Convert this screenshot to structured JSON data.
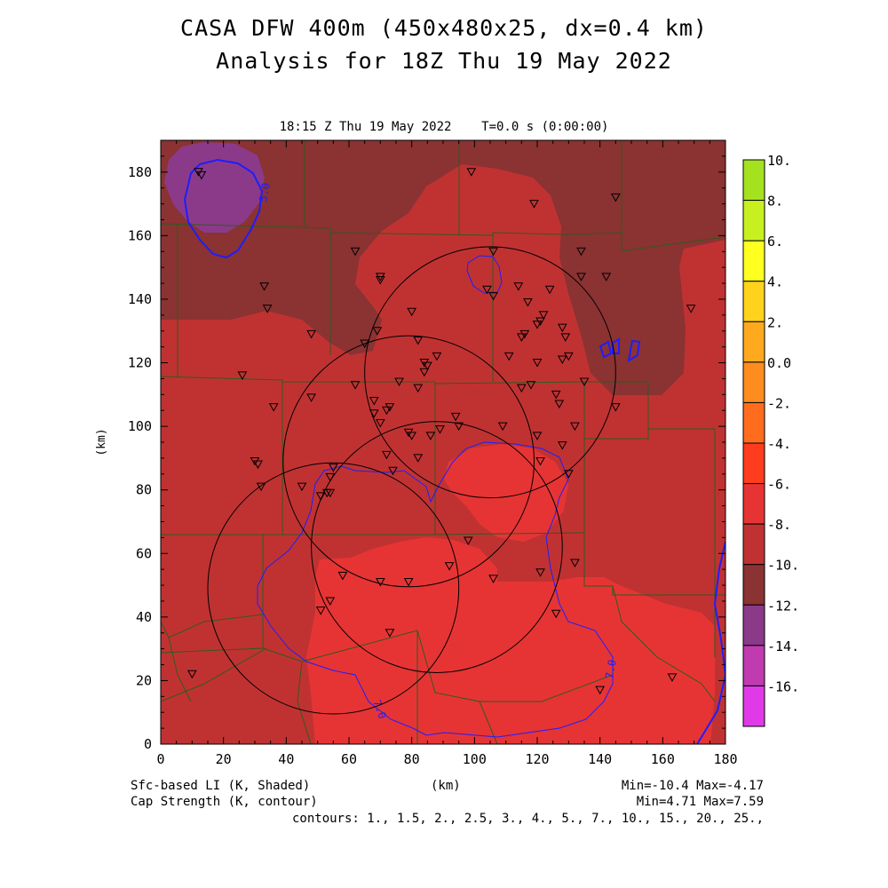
{
  "header": {
    "title_line1": "CASA DFW 400m (450x480x25, dx=0.4 km)",
    "title_line2": "Analysis for 18Z Thu 19 May 2022",
    "valid_time": "18:15 Z Thu 19 May 2022    T=0.0 s (0:00:00)"
  },
  "footer": {
    "shaded_label": "Sfc-based LI (K, Shaded)",
    "contour_label": "Cap Strength (K, contour)",
    "x_unit": "(km)",
    "shaded_minmax": "Min=-10.4 Max=-4.17",
    "contour_minmax": "Min=4.71 Max=7.59",
    "contour_levels": "contours: 1., 1.5, 2., 2.5, 3., 4., 5., 7., 10., 15., 20., 25.,"
  },
  "chart_data": {
    "type": "heatmap",
    "xlabel": "(km)",
    "ylabel": "(km)",
    "xlim": [
      0,
      180
    ],
    "ylim": [
      0,
      190
    ],
    "x_ticks": [
      "0",
      "20",
      "40",
      "60",
      "80",
      "100",
      "120",
      "140",
      "160",
      "180"
    ],
    "y_ticks": [
      "0",
      "20",
      "40",
      "60",
      "80",
      "100",
      "120",
      "140",
      "160",
      "180"
    ],
    "colorbar": {
      "labels": [
        "10.",
        "8.",
        "6.",
        "4.",
        "2.",
        "0.0",
        "-2.",
        "-4.",
        "-6.",
        "-8.",
        "-10.",
        "-12.",
        "-14.",
        "-16."
      ],
      "colors": [
        "#a4e220",
        "#c8f020",
        "#ffff20",
        "#ffd21e",
        "#ffaa1e",
        "#ff8c1e",
        "#ff6c1e",
        "#ff3c1e",
        "#e63434",
        "#c03232",
        "#8b3232",
        "#8b3a8a",
        "#c03ab0",
        "#e03ae8"
      ]
    },
    "contour_labels": [
      "5.0",
      "7.0",
      "7.0"
    ],
    "radar_ranges": [
      {
        "cx": 105,
        "cy": 117
      },
      {
        "cx": 79,
        "cy": 89
      },
      {
        "cx": 88,
        "cy": 62
      },
      {
        "cx": 55,
        "cy": 49
      }
    ],
    "stations": [
      [
        12,
        180
      ],
      [
        13,
        179
      ],
      [
        119,
        170
      ],
      [
        145,
        172
      ],
      [
        99,
        180
      ],
      [
        33,
        144
      ],
      [
        34,
        137
      ],
      [
        62,
        155
      ],
      [
        70,
        147
      ],
      [
        70,
        146
      ],
      [
        48,
        129
      ],
      [
        65,
        126
      ],
      [
        69,
        130
      ],
      [
        80,
        136
      ],
      [
        82,
        127
      ],
      [
        106,
        155
      ],
      [
        104,
        143
      ],
      [
        114,
        144
      ],
      [
        106,
        141
      ],
      [
        117,
        139
      ],
      [
        122,
        135
      ],
      [
        124,
        143
      ],
      [
        120,
        132
      ],
      [
        121,
        133
      ],
      [
        128,
        131
      ],
      [
        129,
        128
      ],
      [
        116,
        129
      ],
      [
        115,
        128
      ],
      [
        134,
        155
      ],
      [
        134,
        147
      ],
      [
        142,
        147
      ],
      [
        169,
        137
      ],
      [
        26,
        116
      ],
      [
        36,
        106
      ],
      [
        48,
        109
      ],
      [
        62,
        113
      ],
      [
        68,
        108
      ],
      [
        72,
        105
      ],
      [
        73,
        106
      ],
      [
        68,
        104
      ],
      [
        70,
        101
      ],
      [
        76,
        114
      ],
      [
        82,
        112
      ],
      [
        84,
        120
      ],
      [
        84,
        117
      ],
      [
        85,
        119
      ],
      [
        88,
        122
      ],
      [
        111,
        122
      ],
      [
        130,
        122
      ],
      [
        128,
        121
      ],
      [
        120,
        120
      ],
      [
        115,
        112
      ],
      [
        118,
        113
      ],
      [
        126,
        110
      ],
      [
        127,
        107
      ],
      [
        135,
        114
      ],
      [
        145,
        106
      ],
      [
        30,
        89
      ],
      [
        31,
        88
      ],
      [
        32,
        81
      ],
      [
        45,
        81
      ],
      [
        55,
        87
      ],
      [
        54,
        84
      ],
      [
        53,
        79
      ],
      [
        54,
        79
      ],
      [
        51,
        78
      ],
      [
        72,
        91
      ],
      [
        79,
        98
      ],
      [
        80,
        97
      ],
      [
        86,
        97
      ],
      [
        89,
        99
      ],
      [
        94,
        103
      ],
      [
        95,
        100
      ],
      [
        109,
        100
      ],
      [
        120,
        97
      ],
      [
        128,
        94
      ],
      [
        132,
        100
      ],
      [
        121,
        89
      ],
      [
        130,
        85
      ],
      [
        74,
        86
      ],
      [
        82,
        90
      ],
      [
        98,
        64
      ],
      [
        58,
        53
      ],
      [
        70,
        51
      ],
      [
        79,
        51
      ],
      [
        92,
        56
      ],
      [
        106,
        52
      ],
      [
        121,
        54
      ],
      [
        132,
        57
      ],
      [
        51,
        42
      ],
      [
        54,
        45
      ],
      [
        73,
        35
      ],
      [
        126,
        41
      ],
      [
        10,
        22
      ],
      [
        140,
        17
      ],
      [
        163,
        21
      ]
    ]
  }
}
